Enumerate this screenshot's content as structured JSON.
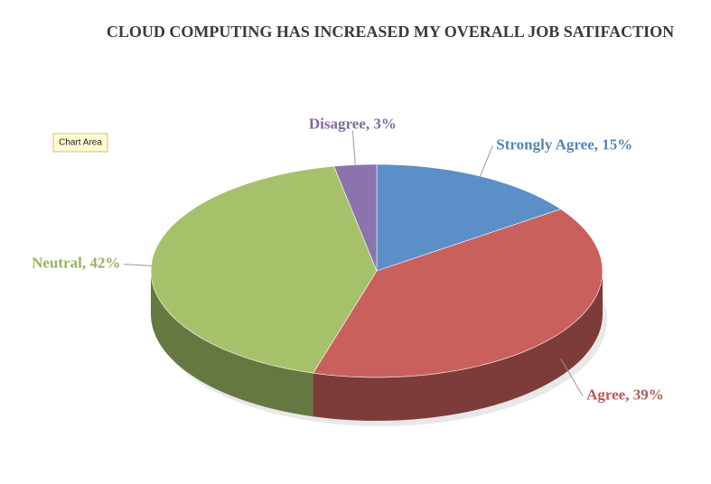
{
  "chart_data": {
    "type": "pie3d",
    "title": "CLOUD COMPUTING HAS INCREASED MY OVERALL JOB SATIFACTION",
    "tooltip": "Chart Area",
    "categories": [
      "Strongly Agree",
      "Agree",
      "Neutral",
      "Disagree"
    ],
    "values": [
      15,
      39,
      42,
      3
    ],
    "value_labels": [
      "15%",
      "39%",
      "42%",
      "3%"
    ],
    "label_separator": ", ",
    "colors": [
      "#5b8fc7",
      "#c9605c",
      "#a5c26b",
      "#8b74ad"
    ]
  }
}
